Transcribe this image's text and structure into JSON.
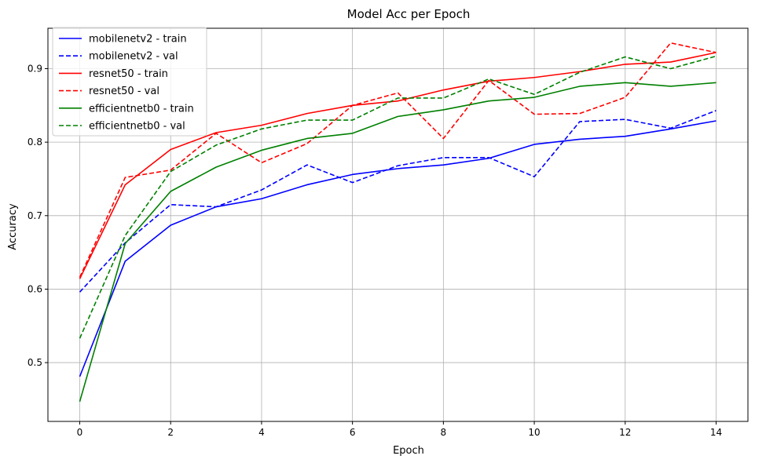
{
  "chart_data": {
    "type": "line",
    "title": "Model Acc per Epoch",
    "xlabel": "Epoch",
    "ylabel": "Accuracy",
    "xlim": [
      -0.7,
      14.7
    ],
    "ylim": [
      0.42,
      0.955
    ],
    "xticks": [
      0,
      2,
      4,
      6,
      8,
      10,
      12,
      14
    ],
    "yticks": [
      0.5,
      0.6,
      0.7,
      0.8,
      0.9
    ],
    "grid": true,
    "legend_position": "top-left",
    "x": [
      0,
      1,
      2,
      3,
      4,
      5,
      6,
      7,
      8,
      9,
      10,
      11,
      12,
      13,
      14
    ],
    "series": [
      {
        "name": "mobilenetv2 - train",
        "color": "#0000ff",
        "dash": "solid",
        "values": [
          0.481,
          0.638,
          0.687,
          0.712,
          0.723,
          0.742,
          0.756,
          0.764,
          0.769,
          0.778,
          0.797,
          0.804,
          0.808,
          0.818,
          0.829
        ]
      },
      {
        "name": "mobilenetv2 - val",
        "color": "#0000ff",
        "dash": "dashed",
        "values": [
          0.596,
          0.663,
          0.715,
          0.712,
          0.735,
          0.769,
          0.745,
          0.768,
          0.779,
          0.779,
          0.753,
          0.828,
          0.831,
          0.819,
          0.843
        ]
      },
      {
        "name": "resnet50 - train",
        "color": "#ff0000",
        "dash": "solid",
        "values": [
          0.614,
          0.742,
          0.79,
          0.813,
          0.823,
          0.839,
          0.85,
          0.856,
          0.871,
          0.883,
          0.888,
          0.896,
          0.906,
          0.909,
          0.922
        ]
      },
      {
        "name": "resnet50 - val",
        "color": "#ff0000",
        "dash": "dashed",
        "values": [
          0.616,
          0.752,
          0.762,
          0.812,
          0.772,
          0.798,
          0.85,
          0.867,
          0.805,
          0.884,
          0.838,
          0.839,
          0.861,
          0.935,
          0.922
        ]
      },
      {
        "name": "efficientnetb0 - train",
        "color": "#008000",
        "dash": "solid",
        "values": [
          0.447,
          0.662,
          0.733,
          0.766,
          0.789,
          0.805,
          0.812,
          0.835,
          0.844,
          0.856,
          0.861,
          0.876,
          0.881,
          0.876,
          0.881
        ]
      },
      {
        "name": "efficientnetb0 - val",
        "color": "#008000",
        "dash": "dashed",
        "values": [
          0.533,
          0.673,
          0.76,
          0.796,
          0.818,
          0.83,
          0.83,
          0.86,
          0.86,
          0.886,
          0.865,
          0.895,
          0.916,
          0.9,
          0.917
        ]
      }
    ]
  }
}
